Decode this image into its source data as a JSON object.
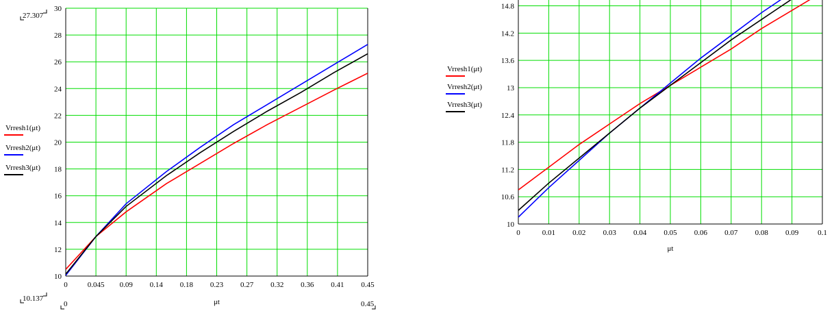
{
  "colors": {
    "grid": "#00dd00",
    "axis": "#000000",
    "series1": "#ff0000",
    "series2": "#0000ff",
    "series3": "#000000"
  },
  "chart_data": [
    {
      "type": "line",
      "title": "",
      "xlabel": "μt",
      "ylabel": "",
      "xlim": [
        0,
        0.45
      ],
      "ylim": [
        10,
        30
      ],
      "grid": true,
      "legend_position": "left",
      "xticks": [
        "0",
        "0.045",
        "0.09",
        "0.14",
        "0.18",
        "0.23",
        "0.27",
        "0.32",
        "0.36",
        "0.41",
        "0.45"
      ],
      "yticks": [
        "10",
        "12",
        "14",
        "16",
        "18",
        "20",
        "22",
        "24",
        "26",
        "28",
        "30"
      ],
      "range_labels": {
        "y_top": "27.307",
        "y_bottom": "10.137",
        "x_left": "0",
        "x_right": "0.45"
      },
      "x": [
        0,
        0.045,
        0.09,
        0.15,
        0.2,
        0.25,
        0.3,
        0.35,
        0.4,
        0.45
      ],
      "series": [
        {
          "name": "Vrresh1(μt)",
          "values": [
            10.5,
            12.95,
            14.8,
            16.9,
            18.4,
            19.9,
            21.3,
            22.6,
            23.9,
            25.15
          ]
        },
        {
          "name": "Vrresh2(μt)",
          "values": [
            10.05,
            12.95,
            15.4,
            17.8,
            19.6,
            21.3,
            22.8,
            24.3,
            25.8,
            27.3
          ]
        },
        {
          "name": "Vrresh3(μt)",
          "values": [
            10.15,
            12.95,
            15.2,
            17.5,
            19.2,
            20.8,
            22.3,
            23.7,
            25.2,
            26.6
          ]
        }
      ]
    },
    {
      "type": "line",
      "title": "",
      "xlabel": "μt",
      "ylabel": "",
      "xlim": [
        0,
        0.1
      ],
      "ylim": [
        10,
        15.2
      ],
      "grid": true,
      "legend_position": "left",
      "xticks": [
        "0",
        "0.01",
        "0.02",
        "0.03",
        "0.04",
        "0.05",
        "0.06",
        "0.07",
        "0.08",
        "0.09",
        "0.1"
      ],
      "yticks": [
        "10",
        "10.6",
        "11.2",
        "11.8",
        "12.4",
        "13",
        "13.6",
        "14.2",
        "14.8"
      ],
      "x": [
        0,
        0.01,
        0.02,
        0.03,
        0.04,
        0.05,
        0.06,
        0.07,
        0.08,
        0.09,
        0.1
      ],
      "series": [
        {
          "name": "Vrresh1(μt)",
          "values": [
            10.75,
            11.25,
            11.75,
            12.2,
            12.65,
            13.05,
            13.45,
            13.85,
            14.3,
            14.7,
            15.1
          ]
        },
        {
          "name": "Vrresh2(μt)",
          "values": [
            10.15,
            10.8,
            11.4,
            12.0,
            12.55,
            13.1,
            13.65,
            14.15,
            14.65,
            15.1,
            15.5
          ]
        },
        {
          "name": "Vrresh3(μt)",
          "values": [
            10.3,
            10.9,
            11.45,
            12.0,
            12.55,
            13.05,
            13.55,
            14.05,
            14.5,
            14.95,
            15.35
          ]
        }
      ]
    }
  ]
}
